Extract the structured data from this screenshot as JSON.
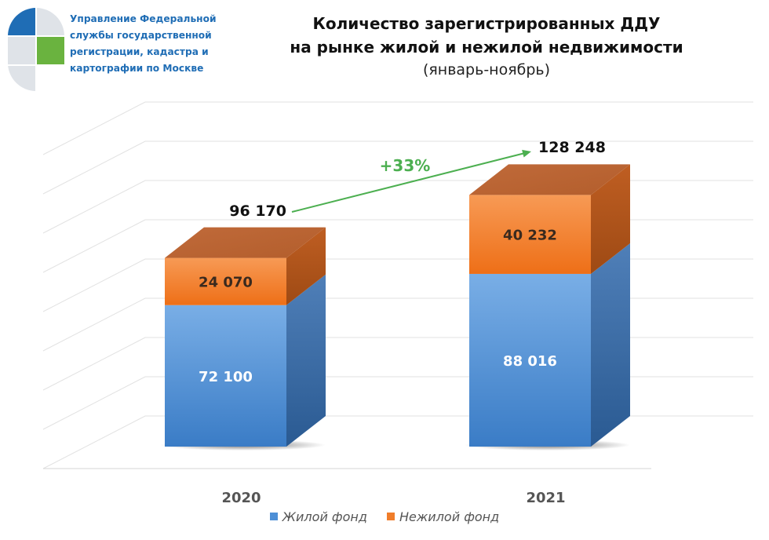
{
  "header": {
    "org_lines": [
      "Управление Федеральной",
      "службы государственной",
      "регистрации, кадастра и",
      "картографии по Москве"
    ],
    "title_lines": [
      "Количество зарегистрированных ДДУ",
      "на рынке жилой и нежилой недвижимости"
    ],
    "subtitle": "(январь-ноябрь)"
  },
  "chart_data": {
    "type": "bar",
    "stacked": true,
    "three_d": true,
    "categories": [
      "2020",
      "2021"
    ],
    "series": [
      {
        "name": "Жилой фонд",
        "values": [
          72100,
          88016
        ],
        "value_labels": [
          "72 100",
          "88 016"
        ],
        "color": "#4d8fd6"
      },
      {
        "name": "Нежилой фонд",
        "values": [
          24070,
          40232
        ],
        "value_labels": [
          "24 070",
          "40 232"
        ],
        "color": "#f07d2a"
      }
    ],
    "totals": [
      96170,
      128248
    ],
    "total_labels": [
      "96 170",
      "128 248"
    ],
    "growth_label": "+33%",
    "growth_color": "#4caf50",
    "grid": true,
    "legend_position": "bottom"
  }
}
